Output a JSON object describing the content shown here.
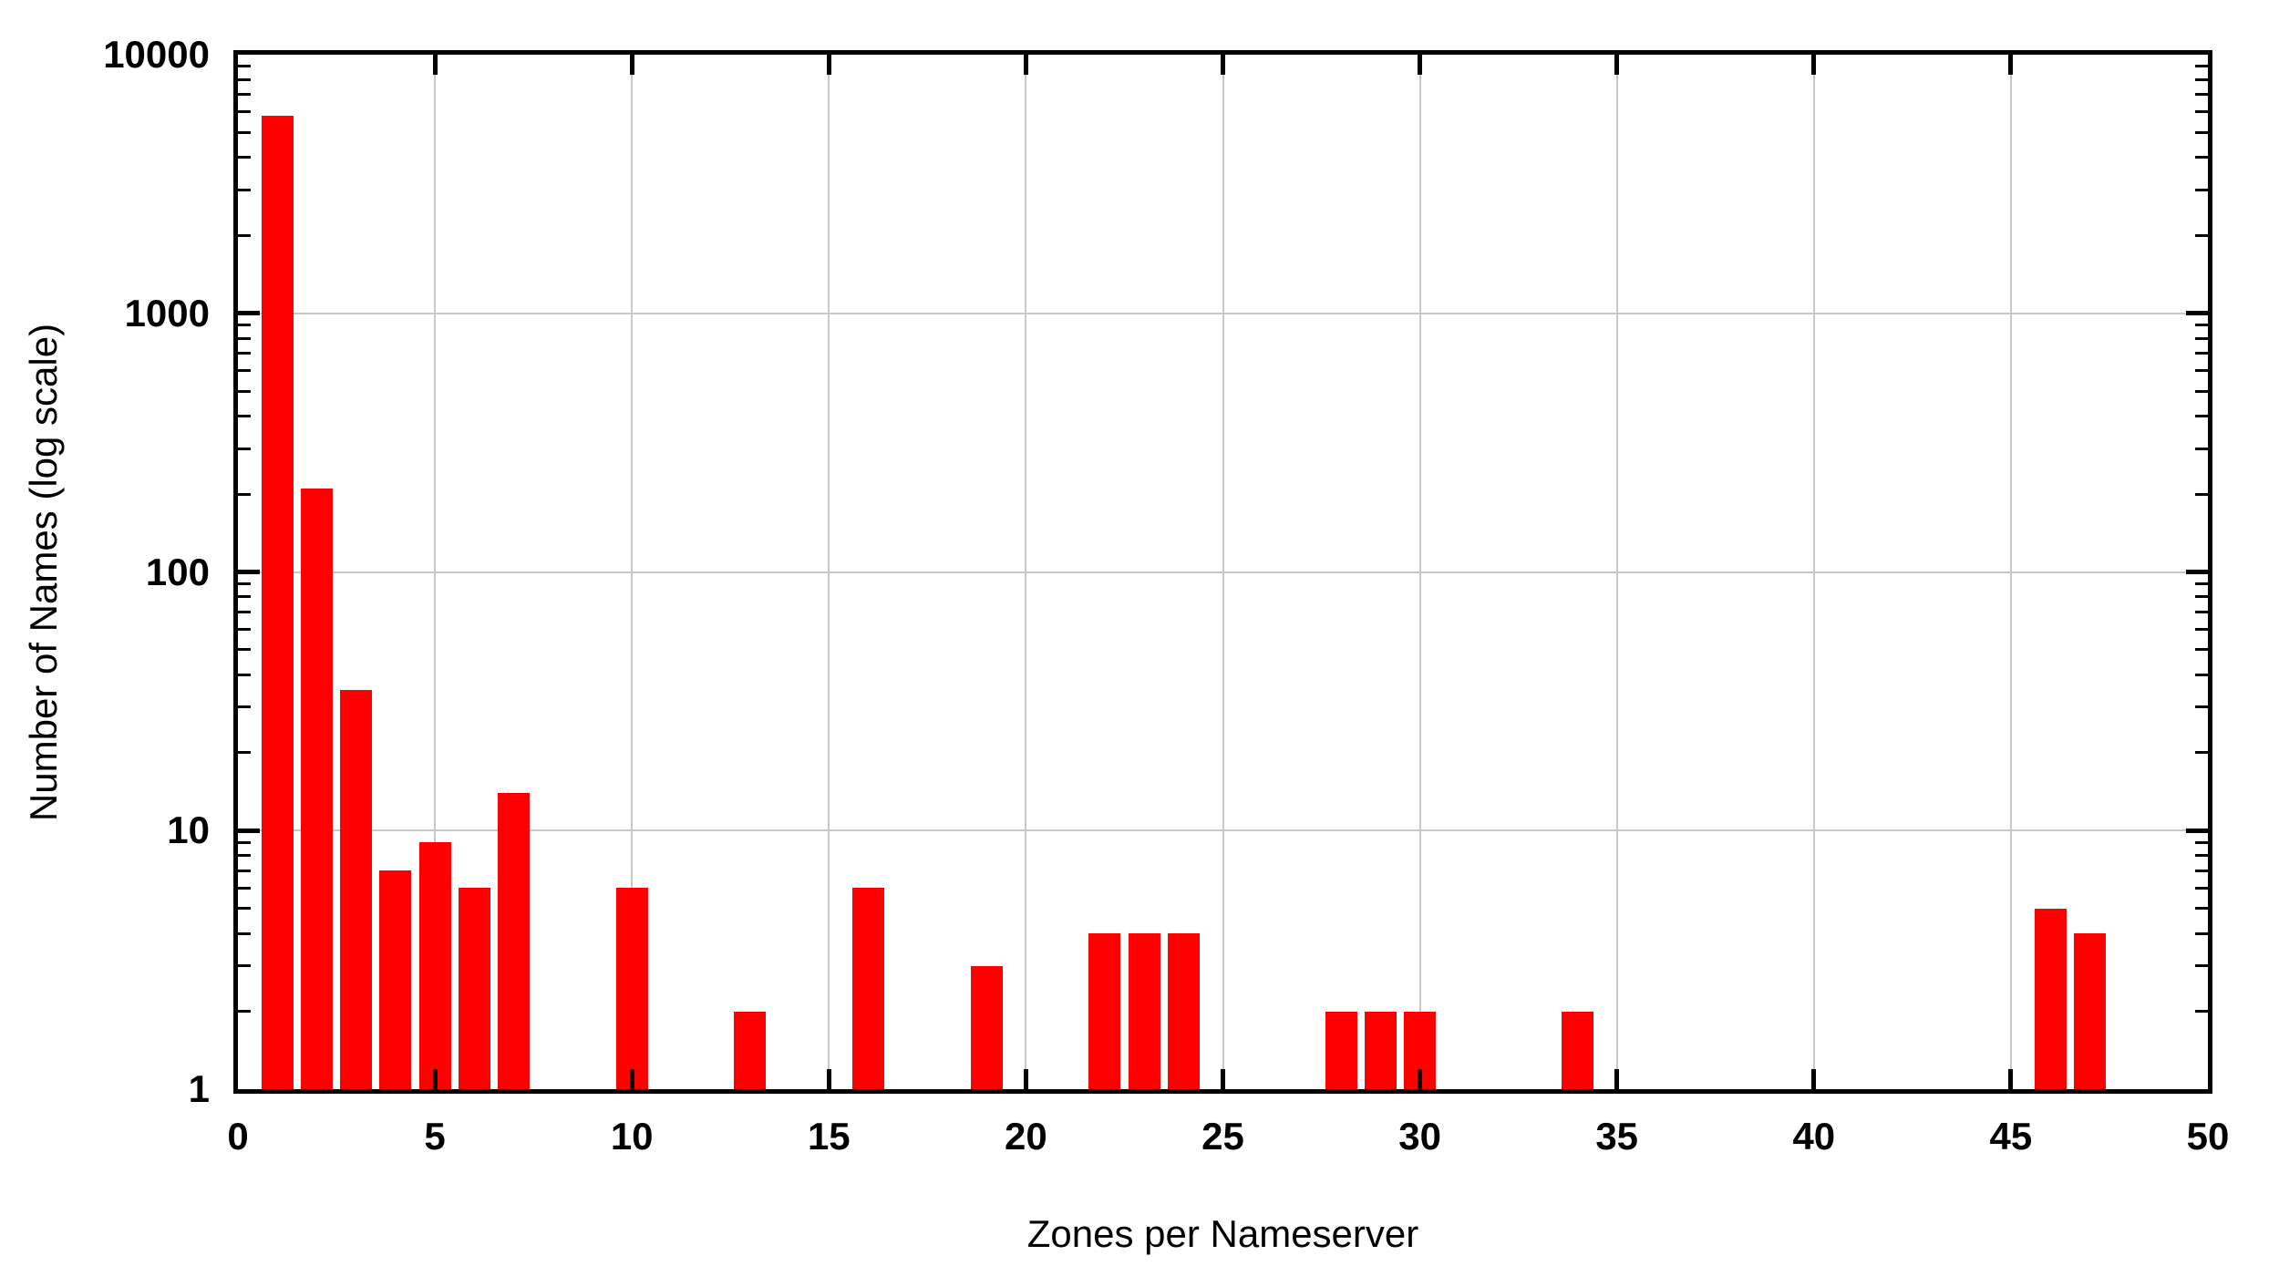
{
  "chart_data": {
    "type": "bar",
    "title": "",
    "xlabel": "Zones per Nameserver",
    "ylabel": "Number of Names (log scale)",
    "x": [
      1,
      2,
      3,
      4,
      5,
      6,
      7,
      10,
      13,
      16,
      19,
      22,
      23,
      24,
      28,
      29,
      30,
      34,
      46,
      47
    ],
    "values": [
      5800,
      210,
      35,
      7,
      9,
      6,
      14,
      6,
      2,
      6,
      3,
      4,
      4,
      4,
      2,
      2,
      2,
      2,
      5,
      4
    ],
    "xlim": [
      0,
      50
    ],
    "ylim": [
      1,
      10000
    ],
    "y_scale": "log",
    "x_tick_labels": [
      "0",
      "5",
      "10",
      "15",
      "20",
      "25",
      "30",
      "35",
      "40",
      "45",
      "50"
    ],
    "x_tick_values": [
      0,
      5,
      10,
      15,
      20,
      25,
      30,
      35,
      40,
      45,
      50
    ],
    "y_tick_labels": [
      "1",
      "10",
      "100",
      "1000",
      "10000"
    ],
    "y_tick_values": [
      1,
      10,
      100,
      1000,
      10000
    ],
    "grid": "on",
    "legend": "none",
    "bar_color": "#ff0000",
    "grid_color": "#c8c8c8",
    "axis_color": "#000000",
    "background_color": "#ffffff"
  }
}
